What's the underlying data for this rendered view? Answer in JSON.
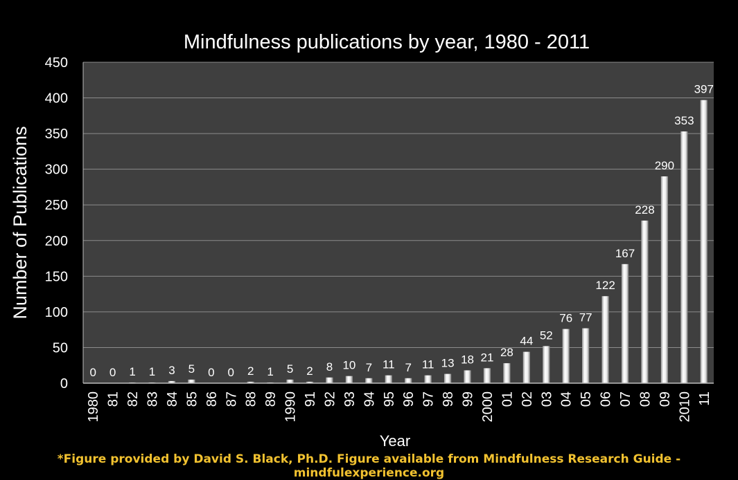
{
  "footer": "*Figure provided by David S. Black, Ph.D. Figure available from Mindfulness Research Guide - mindfulexperience.org",
  "colors": {
    "background": "#000000",
    "plot_area": "#3f3f3f",
    "gridline": "#8c8c8c",
    "bar": "#ffffff",
    "text": "#ffffff",
    "footer": "#f2c230"
  },
  "chart_data": {
    "type": "bar",
    "title": "Mindfulness publications by year, 1980 - 2011",
    "xlabel": "Year",
    "ylabel": "Number of Publications",
    "ylim": [
      0,
      450
    ],
    "yticks": [
      0,
      50,
      100,
      150,
      200,
      250,
      300,
      350,
      400,
      450
    ],
    "grid": true,
    "legend": "none",
    "categories": [
      "1980",
      "81",
      "82",
      "83",
      "84",
      "85",
      "86",
      "87",
      "88",
      "89",
      "1990",
      "91",
      "92",
      "93",
      "94",
      "95",
      "96",
      "97",
      "98",
      "99",
      "2000",
      "01",
      "02",
      "03",
      "04",
      "05",
      "06",
      "07",
      "08",
      "09",
      "2010",
      "11"
    ],
    "values": [
      0,
      0,
      1,
      1,
      3,
      5,
      0,
      0,
      2,
      1,
      5,
      2,
      8,
      10,
      7,
      11,
      7,
      11,
      13,
      18,
      21,
      28,
      44,
      52,
      76,
      77,
      122,
      167,
      228,
      290,
      353,
      397
    ]
  }
}
